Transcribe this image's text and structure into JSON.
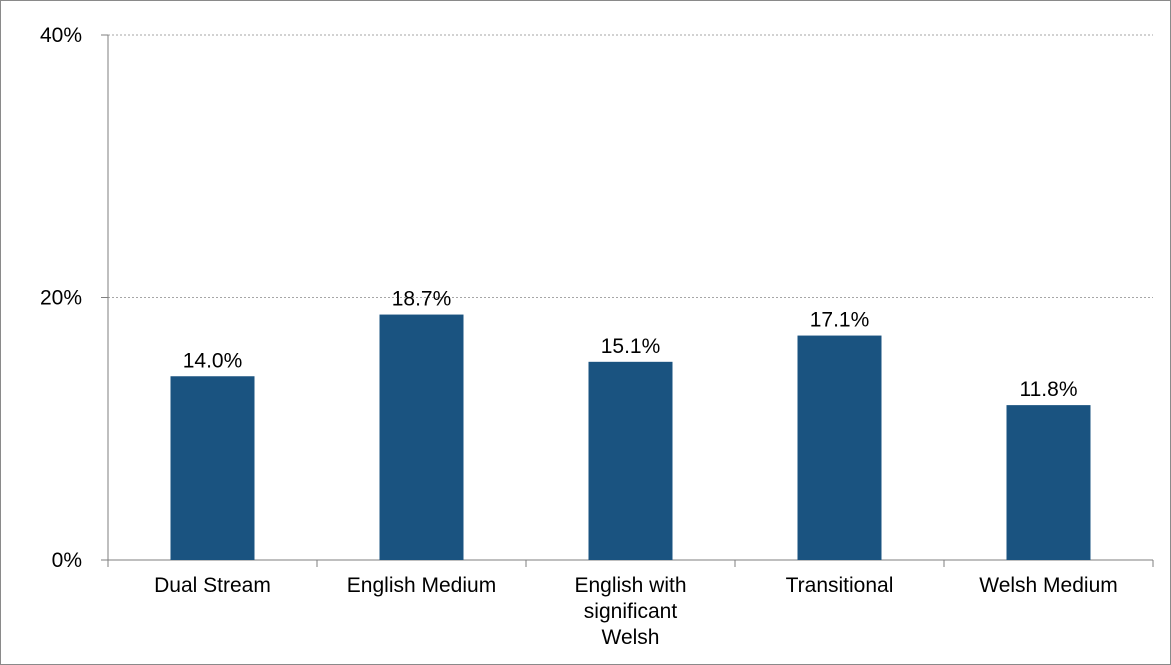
{
  "chart_data": {
    "type": "bar",
    "title": "",
    "xlabel": "",
    "ylabel": "",
    "categories": [
      [
        "Dual Stream"
      ],
      [
        "English Medium"
      ],
      [
        "English with",
        "significant",
        "Welsh"
      ],
      [
        "Transitional"
      ],
      [
        "Welsh Medium"
      ]
    ],
    "values": [
      14.0,
      18.7,
      15.1,
      17.1,
      11.8
    ],
    "data_labels": [
      "14.0%",
      "18.7%",
      "15.1%",
      "17.1%",
      "11.8%"
    ],
    "ylim": [
      0,
      40
    ],
    "yticks": [
      0,
      20,
      40
    ],
    "ytick_labels": [
      "0%",
      "20%",
      "40%"
    ],
    "grid": "horizontal dotted at major ticks",
    "legend": "none",
    "colors": {
      "bar": "#1A5380",
      "grid": "#A6A6A6",
      "axis": "#7F7F7F",
      "border": "#8A8A8A"
    }
  }
}
